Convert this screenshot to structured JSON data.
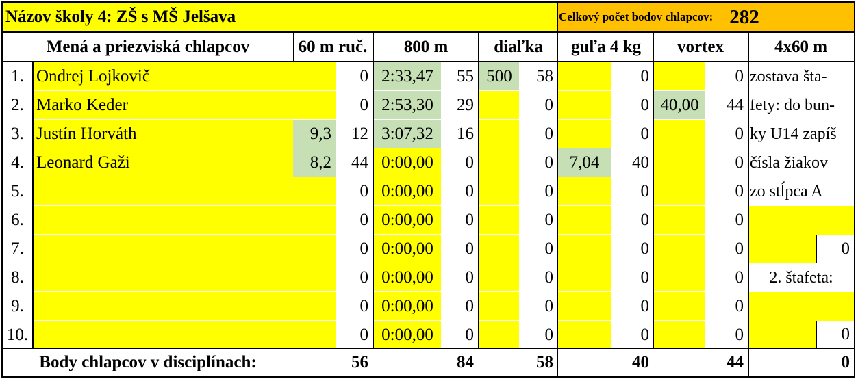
{
  "title_row": {
    "school_name": "Názov školy 4: ZŠ s MŠ Jelšava",
    "total_label": "Celkový počet bodov chlapcov:",
    "total_value": "282"
  },
  "headers": {
    "names": "Mená a priezviská chlapcov",
    "run60": "60 m ruč.",
    "run800": "800 m",
    "jump": "diaľka",
    "shot": "guľa 4 kg",
    "vortex": "vortex",
    "relay": "4x60 m"
  },
  "rows": [
    {
      "no": "1.",
      "name": "Ondrej Lojkovič",
      "r60": "",
      "r60p": "0",
      "r800": "2:33,47",
      "r800p": "55",
      "jump": "500",
      "jumpp": "58",
      "shot": "",
      "shotp": "0",
      "vortex": "",
      "vortexp": "0"
    },
    {
      "no": "2.",
      "name": "Marko Keder",
      "r60": "",
      "r60p": "0",
      "r800": "2:53,30",
      "r800p": "29",
      "jump": "",
      "jumpp": "0",
      "shot": "",
      "shotp": "0",
      "vortex": "40,00",
      "vortexp": "44"
    },
    {
      "no": "3.",
      "name": "Justín Horváth",
      "r60": "9,3",
      "r60p": "12",
      "r800": "3:07,32",
      "r800p": "16",
      "jump": "",
      "jumpp": "0",
      "shot": "",
      "shotp": "0",
      "vortex": "",
      "vortexp": "0"
    },
    {
      "no": "4.",
      "name": "Leonard Gaži",
      "r60": "8,2",
      "r60p": "44",
      "r800": "0:00,00",
      "r800p": "0",
      "jump": "",
      "jumpp": "0",
      "shot": "7,04",
      "shotp": "40",
      "vortex": "",
      "vortexp": "0"
    },
    {
      "no": "5.",
      "name": "",
      "r60": "",
      "r60p": "0",
      "r800": "0:00,00",
      "r800p": "0",
      "jump": "",
      "jumpp": "0",
      "shot": "",
      "shotp": "0",
      "vortex": "",
      "vortexp": "0"
    },
    {
      "no": "6.",
      "name": "",
      "r60": "",
      "r60p": "0",
      "r800": "0:00,00",
      "r800p": "0",
      "jump": "",
      "jumpp": "0",
      "shot": "",
      "shotp": "0",
      "vortex": "",
      "vortexp": "0"
    },
    {
      "no": "7.",
      "name": "",
      "r60": "",
      "r60p": "0",
      "r800": "0:00,00",
      "r800p": "0",
      "jump": "",
      "jumpp": "0",
      "shot": "",
      "shotp": "0",
      "vortex": "",
      "vortexp": "0"
    },
    {
      "no": "8.",
      "name": "",
      "r60": "",
      "r60p": "0",
      "r800": "0:00,00",
      "r800p": "0",
      "jump": "",
      "jumpp": "0",
      "shot": "",
      "shotp": "0",
      "vortex": "",
      "vortexp": "0"
    },
    {
      "no": "9.",
      "name": "",
      "r60": "",
      "r60p": "0",
      "r800": "0:00,00",
      "r800p": "0",
      "jump": "",
      "jumpp": "0",
      "shot": "",
      "shotp": "0",
      "vortex": "",
      "vortexp": "0"
    },
    {
      "no": "10.",
      "name": "",
      "r60": "",
      "r60p": "0",
      "r800": "0:00,00",
      "r800p": "0",
      "jump": "",
      "jumpp": "0",
      "shot": "",
      "shotp": "0",
      "vortex": "",
      "vortexp": "0"
    }
  ],
  "relay_note_lines": [
    "zostava šta-",
    "fety: do bun-",
    "ky U14 zapíš",
    "čísla žiakov",
    "zo stĺpca A"
  ],
  "relay1_points": "0",
  "relay2_label": "2. štafeta:",
  "relay2_points": "0",
  "totals": {
    "label": "Body chlapcov v disciplínach:",
    "run60": "56",
    "run800": "84",
    "jump": "58",
    "shot": "40",
    "vortex": "44",
    "relay": "0"
  },
  "colors": {
    "input_yellow": "#ffff00",
    "filled_green": "#c6dfb4",
    "total_orange": "#ffc000"
  }
}
